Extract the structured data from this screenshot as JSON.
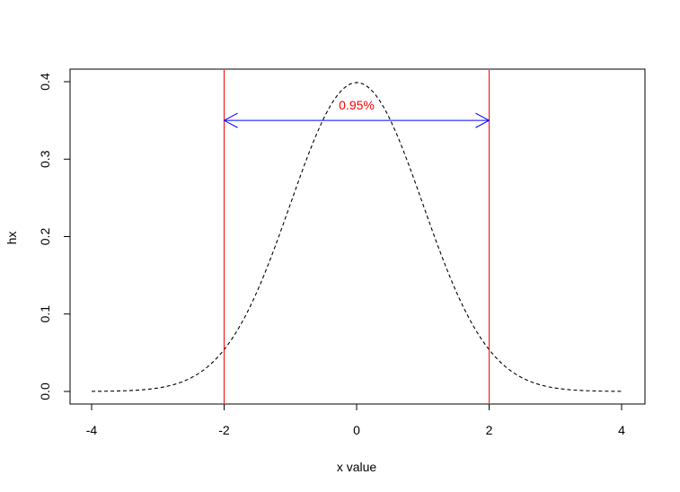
{
  "chart_data": {
    "type": "line",
    "title": "",
    "xlabel": "x value",
    "ylabel": "hx",
    "xlim": [
      -4,
      4
    ],
    "ylim": [
      0,
      0.4
    ],
    "xticks": [
      -4,
      -2,
      0,
      2,
      4
    ],
    "xtick_labels": [
      "-4",
      "-2",
      "0",
      "2",
      "4"
    ],
    "yticks": [
      0.0,
      0.1,
      0.2,
      0.3,
      0.4
    ],
    "ytick_labels": [
      "0.0",
      "0.1",
      "0.2",
      "0.3",
      "0.4"
    ],
    "grid": false,
    "series": [
      {
        "line_style": "dashed",
        "color": "#000000",
        "x": [
          -4,
          -3.5,
          -3,
          -2.5,
          -2,
          -1.5,
          -1,
          -0.5,
          0,
          0.5,
          1,
          1.5,
          2,
          2.5,
          3,
          3.5,
          4
        ],
        "y": [
          0.0001,
          0.0009,
          0.0044,
          0.0175,
          0.054,
          0.1295,
          0.242,
          0.3521,
          0.3989,
          0.3521,
          0.242,
          0.1295,
          0.054,
          0.0175,
          0.0044,
          0.0009,
          0.0001
        ]
      }
    ],
    "vlines": [
      {
        "x": -2,
        "color": "#ff0000"
      },
      {
        "x": 2,
        "color": "#ff0000"
      }
    ],
    "arrow": {
      "x0": -2,
      "x1": 2,
      "y": 0.35,
      "color": "#0000ff",
      "both_ends": true
    },
    "annotations": [
      {
        "text": "0.95%",
        "x": 0,
        "y": 0.37,
        "color": "#ff0000"
      }
    ]
  }
}
